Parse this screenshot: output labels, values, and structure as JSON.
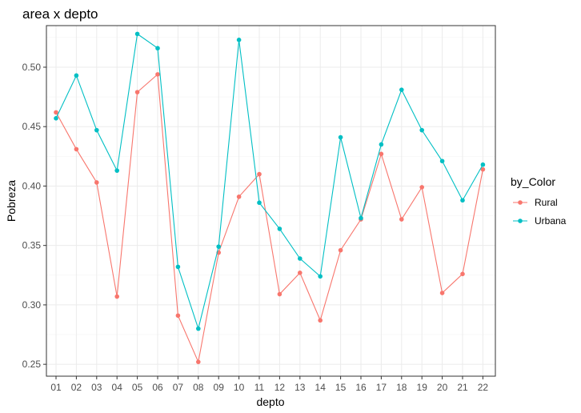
{
  "chart_data": {
    "type": "line",
    "title": "area x depto",
    "xlabel": "depto",
    "ylabel": "Pobreza",
    "categories": [
      "01",
      "02",
      "03",
      "04",
      "05",
      "06",
      "07",
      "08",
      "09",
      "10",
      "11",
      "12",
      "13",
      "14",
      "15",
      "16",
      "17",
      "18",
      "19",
      "20",
      "21",
      "22"
    ],
    "ylim": [
      0.24,
      0.535
    ],
    "yticks": [
      0.25,
      0.3,
      0.35,
      0.4,
      0.45,
      0.5
    ],
    "ytick_labels": [
      "0.25",
      "0.30",
      "0.35",
      "0.40",
      "0.45",
      "0.50"
    ],
    "grid": true,
    "legend": {
      "title": "by_Color",
      "position": "right"
    },
    "series": [
      {
        "name": "Rural",
        "color": "#F8766D",
        "values": [
          0.462,
          0.431,
          0.403,
          0.307,
          0.479,
          0.494,
          0.291,
          0.252,
          0.344,
          0.391,
          0.41,
          0.309,
          0.327,
          0.287,
          0.346,
          0.372,
          0.427,
          0.372,
          0.399,
          0.31,
          0.326,
          0.414
        ]
      },
      {
        "name": "Urbana",
        "color": "#00BFC4",
        "values": [
          0.457,
          0.493,
          0.447,
          0.413,
          0.528,
          0.516,
          0.332,
          0.28,
          0.349,
          0.523,
          0.386,
          0.364,
          0.339,
          0.324,
          0.441,
          0.373,
          0.435,
          0.481,
          0.447,
          0.421,
          0.388,
          0.418
        ]
      }
    ]
  }
}
